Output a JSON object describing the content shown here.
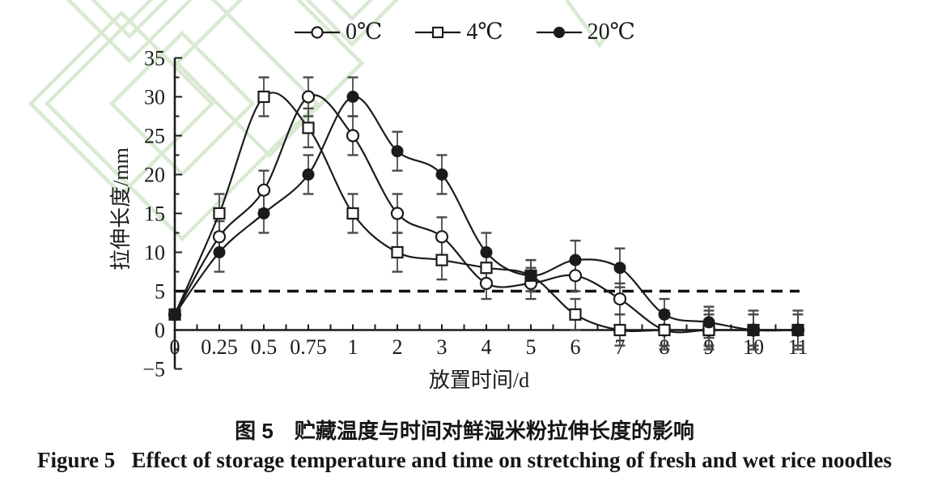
{
  "page": {
    "background": "#ffffff",
    "watermark_color": "#d8ead2",
    "line_color": "#1b1b1b",
    "error_bar_color": "#4a4a4a"
  },
  "chart_data": {
    "type": "line",
    "title": "",
    "xlabel": "放置时间/d",
    "ylabel": "拉伸长度/mm",
    "categories": [
      "0",
      "0.25",
      "0.5",
      "0.75",
      "1",
      "2",
      "3",
      "4",
      "5",
      "6",
      "7",
      "8",
      "9",
      "10",
      "11"
    ],
    "ylim": [
      -5,
      35
    ],
    "ytick_step": 5,
    "yticks": [
      "35",
      "30",
      "25",
      "20",
      "15",
      "10",
      "5",
      "0",
      "−5"
    ],
    "grid": false,
    "legend_position": "top-center",
    "reference_line": {
      "y": 5,
      "style": "dashed"
    },
    "series": [
      {
        "name": "0℃",
        "marker": "open-circle",
        "values": [
          2,
          12,
          18,
          30,
          25,
          15,
          12,
          6,
          6,
          7,
          4,
          0,
          0,
          0,
          0
        ],
        "errors": [
          0.5,
          2,
          2.5,
          2.5,
          2.5,
          2.5,
          2.5,
          2,
          2,
          2,
          2,
          2.5,
          2.5,
          2,
          2
        ]
      },
      {
        "name": "4℃",
        "marker": "open-square",
        "values": [
          2,
          15,
          30,
          26,
          15,
          10,
          9,
          8,
          7,
          2,
          0,
          0,
          0,
          0,
          0
        ],
        "errors": [
          0.5,
          2.5,
          2.5,
          2.5,
          2.5,
          2.5,
          2.5,
          2,
          2,
          2,
          2,
          2,
          2,
          2,
          2
        ]
      },
      {
        "name": "20℃",
        "marker": "filled-circle",
        "values": [
          2,
          10,
          15,
          20,
          30,
          23,
          20,
          10,
          7,
          9,
          8,
          2,
          1,
          0,
          0
        ],
        "errors": [
          0.5,
          2.5,
          2.5,
          2.5,
          2.5,
          2.5,
          2.5,
          2.5,
          2,
          2.5,
          2.5,
          2,
          2,
          2.5,
          2.5
        ]
      }
    ]
  },
  "caption": {
    "line1": "图 5　贮藏温度与时间对鲜湿米粉拉伸长度的影响",
    "line2": "Figure 5   Effect of storage temperature and time on stretching of fresh and wet rice noodles"
  }
}
